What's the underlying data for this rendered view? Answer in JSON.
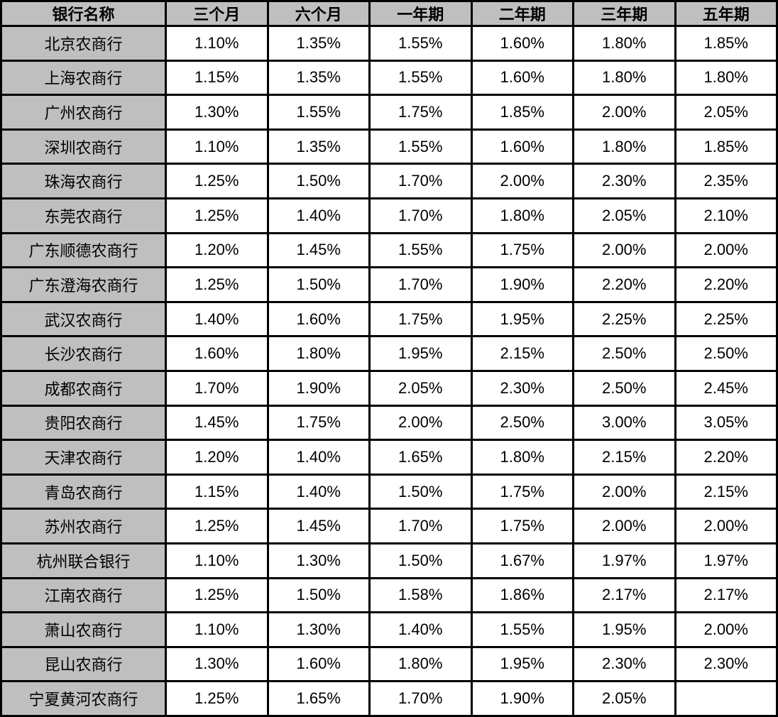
{
  "colors": {
    "header_bg": "#bfbfbf",
    "row_label_bg": "#bfbfbf",
    "cell_bg": "#ffffff",
    "border": "#000000",
    "text": "#000000"
  },
  "chart_data": {
    "type": "table",
    "columns": [
      "银行名称",
      "三个月",
      "六个月",
      "一年期",
      "二年期",
      "三年期",
      "五年期"
    ],
    "rows": [
      {
        "bank": "北京农商行",
        "rates": [
          "1.10%",
          "1.35%",
          "1.55%",
          "1.60%",
          "1.80%",
          "1.85%"
        ]
      },
      {
        "bank": "上海农商行",
        "rates": [
          "1.15%",
          "1.35%",
          "1.55%",
          "1.60%",
          "1.80%",
          "1.80%"
        ]
      },
      {
        "bank": "广州农商行",
        "rates": [
          "1.30%",
          "1.55%",
          "1.75%",
          "1.85%",
          "2.00%",
          "2.05%"
        ]
      },
      {
        "bank": "深圳农商行",
        "rates": [
          "1.10%",
          "1.35%",
          "1.55%",
          "1.60%",
          "1.80%",
          "1.85%"
        ]
      },
      {
        "bank": "珠海农商行",
        "rates": [
          "1.25%",
          "1.50%",
          "1.70%",
          "2.00%",
          "2.30%",
          "2.35%"
        ]
      },
      {
        "bank": "东莞农商行",
        "rates": [
          "1.25%",
          "1.40%",
          "1.70%",
          "1.80%",
          "2.05%",
          "2.10%"
        ]
      },
      {
        "bank": "广东顺德农商行",
        "rates": [
          "1.20%",
          "1.45%",
          "1.55%",
          "1.75%",
          "2.00%",
          "2.00%"
        ]
      },
      {
        "bank": "广东澄海农商行",
        "rates": [
          "1.25%",
          "1.50%",
          "1.70%",
          "1.90%",
          "2.20%",
          "2.20%"
        ]
      },
      {
        "bank": "武汉农商行",
        "rates": [
          "1.40%",
          "1.60%",
          "1.75%",
          "1.95%",
          "2.25%",
          "2.25%"
        ]
      },
      {
        "bank": "长沙农商行",
        "rates": [
          "1.60%",
          "1.80%",
          "1.95%",
          "2.15%",
          "2.50%",
          "2.50%"
        ]
      },
      {
        "bank": "成都农商行",
        "rates": [
          "1.70%",
          "1.90%",
          "2.05%",
          "2.30%",
          "2.50%",
          "2.45%"
        ]
      },
      {
        "bank": "贵阳农商行",
        "rates": [
          "1.45%",
          "1.75%",
          "2.00%",
          "2.50%",
          "3.00%",
          "3.05%"
        ]
      },
      {
        "bank": "天津农商行",
        "rates": [
          "1.20%",
          "1.40%",
          "1.65%",
          "1.80%",
          "2.15%",
          "2.20%"
        ]
      },
      {
        "bank": "青岛农商行",
        "rates": [
          "1.15%",
          "1.40%",
          "1.50%",
          "1.75%",
          "2.00%",
          "2.15%"
        ]
      },
      {
        "bank": "苏州农商行",
        "rates": [
          "1.25%",
          "1.45%",
          "1.70%",
          "1.75%",
          "2.00%",
          "2.00%"
        ]
      },
      {
        "bank": "杭州联合银行",
        "rates": [
          "1.10%",
          "1.30%",
          "1.50%",
          "1.67%",
          "1.97%",
          "1.97%"
        ]
      },
      {
        "bank": "江南农商行",
        "rates": [
          "1.25%",
          "1.50%",
          "1.58%",
          "1.86%",
          "2.17%",
          "2.17%"
        ]
      },
      {
        "bank": "萧山农商行",
        "rates": [
          "1.10%",
          "1.30%",
          "1.40%",
          "1.55%",
          "1.95%",
          "2.00%"
        ]
      },
      {
        "bank": "昆山农商行",
        "rates": [
          "1.30%",
          "1.60%",
          "1.80%",
          "1.95%",
          "2.30%",
          "2.30%"
        ]
      },
      {
        "bank": "宁夏黄河农商行",
        "rates": [
          "1.25%",
          "1.65%",
          "1.70%",
          "1.90%",
          "2.05%",
          ""
        ]
      }
    ]
  }
}
